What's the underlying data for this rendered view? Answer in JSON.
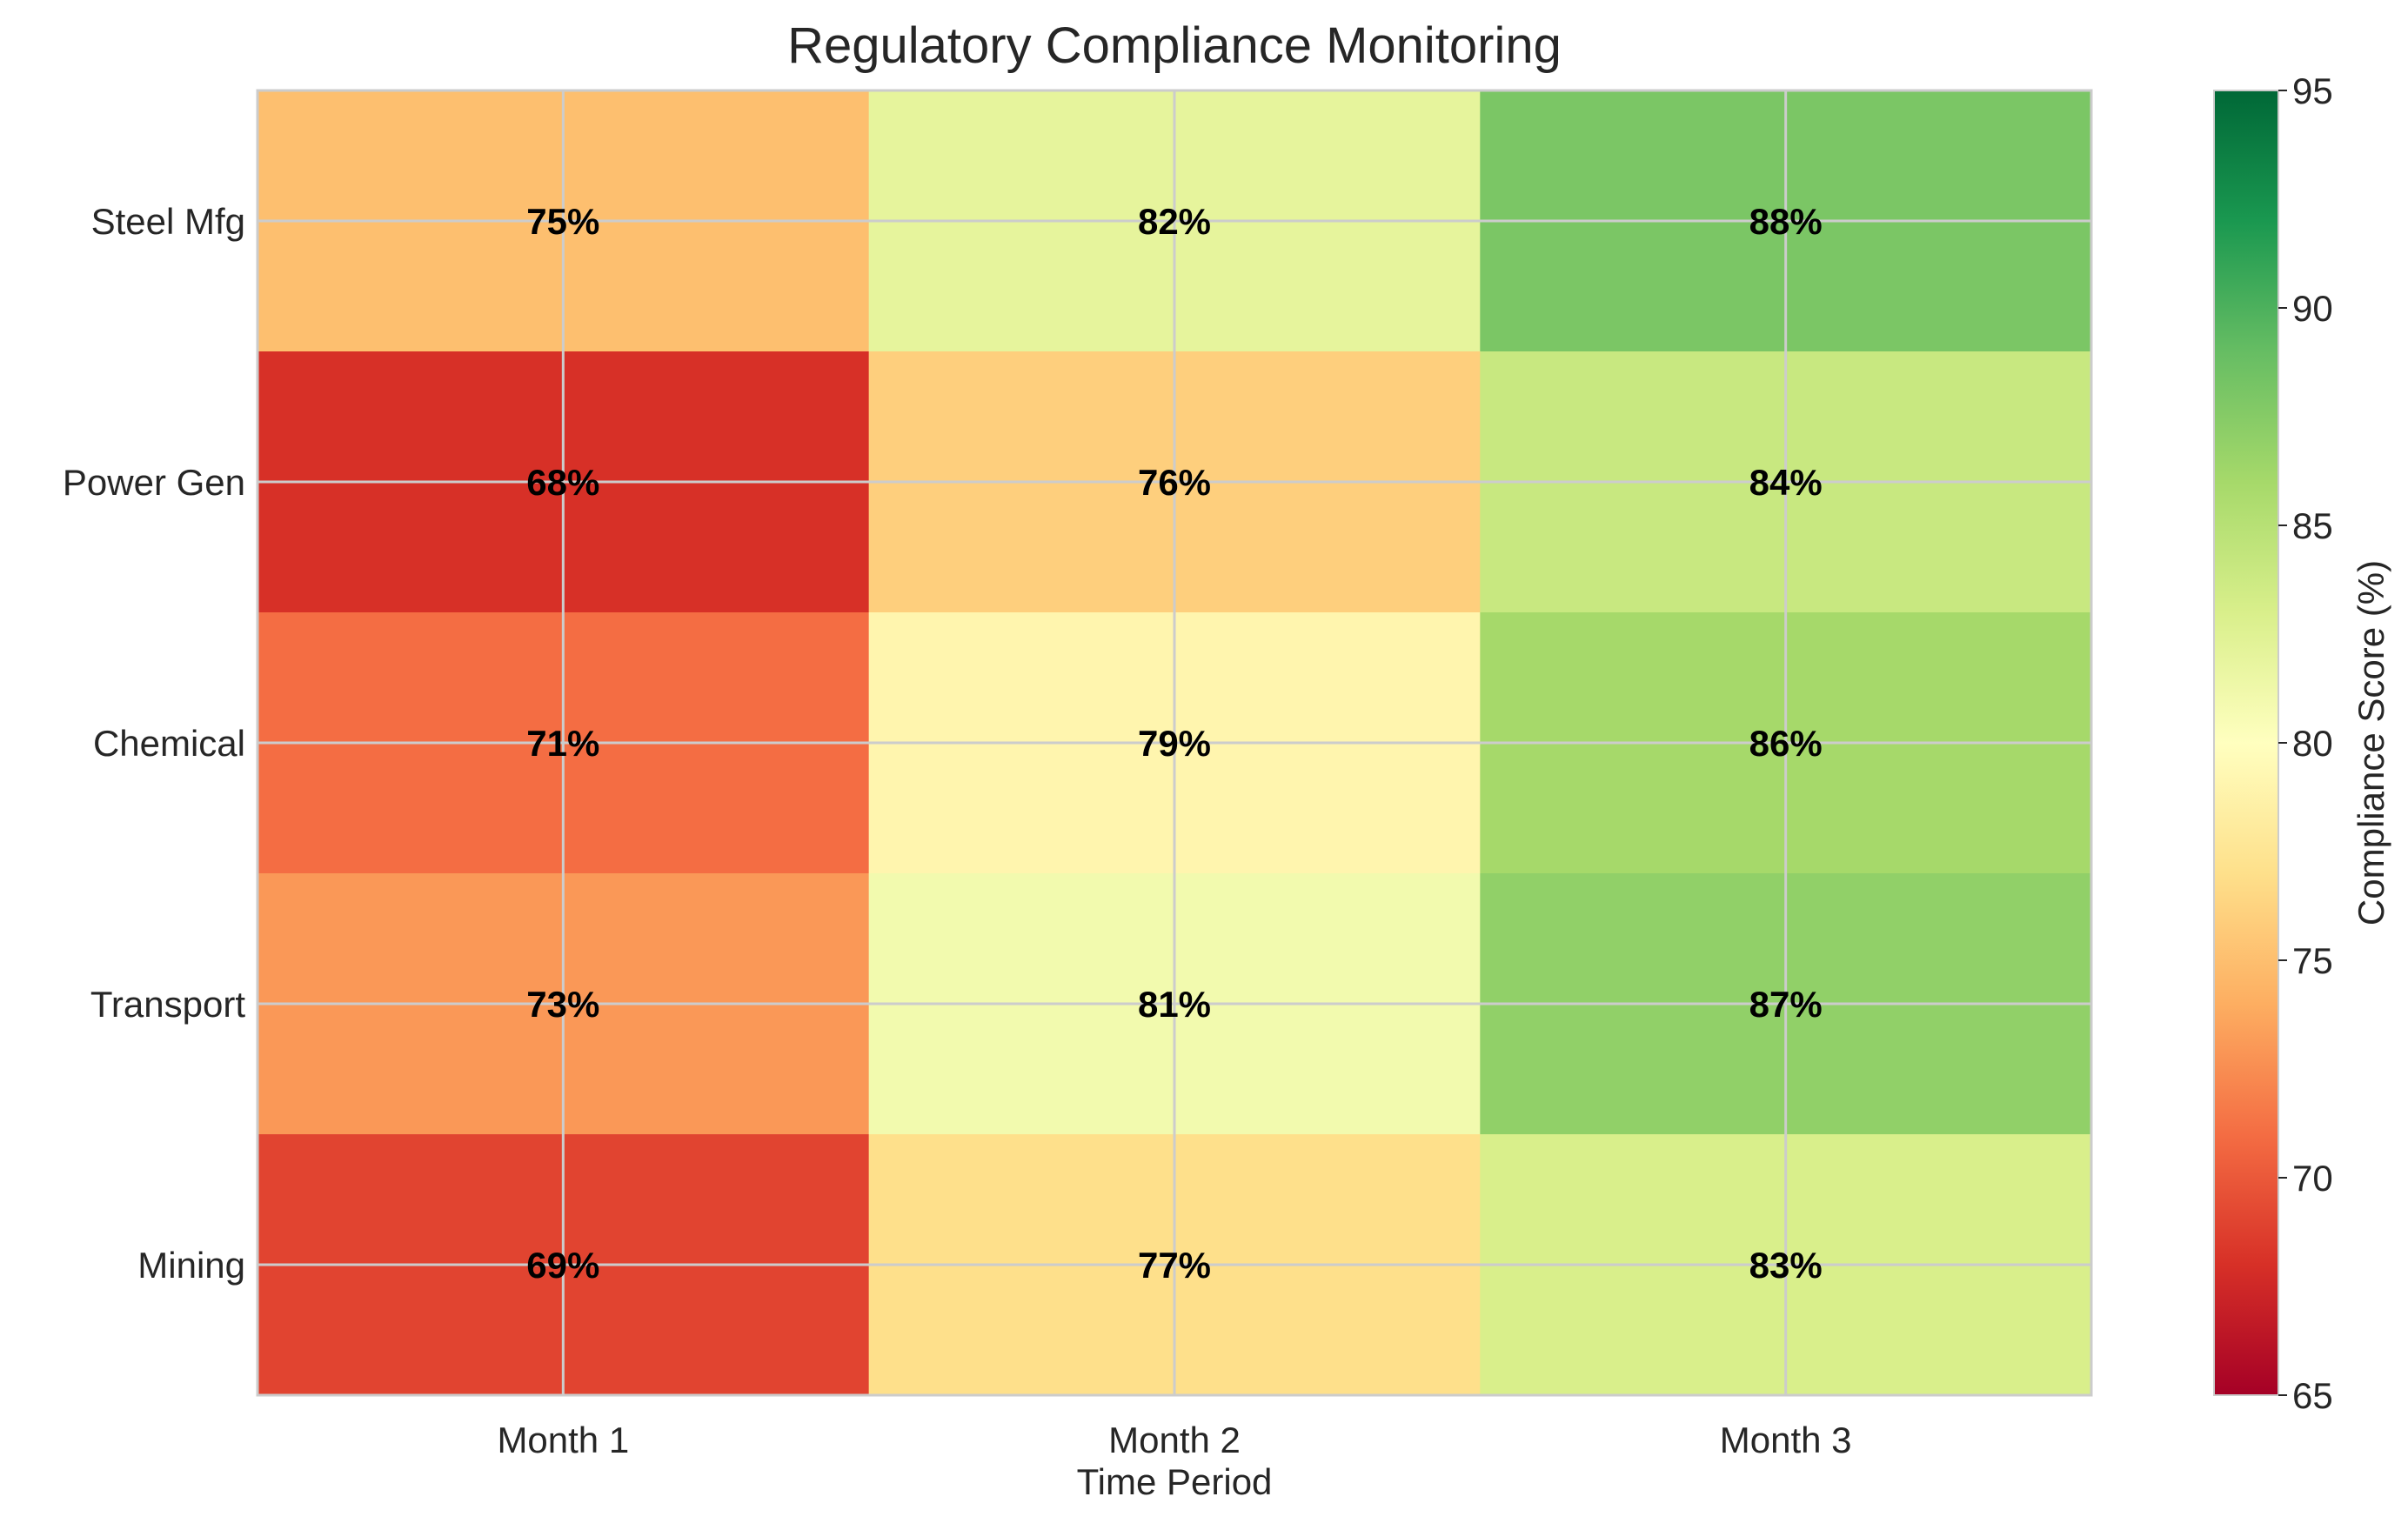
{
  "chart_data": {
    "type": "heatmap",
    "title": "Regulatory Compliance Monitoring",
    "xlabel": "Time Period",
    "ylabel": "",
    "x_categories": [
      "Month 1",
      "Month 2",
      "Month 3"
    ],
    "y_categories": [
      "Steel Mfg",
      "Power Gen",
      "Chemical",
      "Transport",
      "Mining"
    ],
    "values": [
      [
        75,
        82,
        88
      ],
      [
        68,
        76,
        84
      ],
      [
        71,
        79,
        86
      ],
      [
        73,
        81,
        87
      ],
      [
        69,
        77,
        83
      ]
    ],
    "value_suffix": "%",
    "colorbar": {
      "label": "Compliance Score (%)",
      "range": [
        65,
        95
      ],
      "ticks": [
        65,
        70,
        75,
        80,
        85,
        90,
        95
      ],
      "colormap": "RdYlGn"
    },
    "grid": true
  }
}
